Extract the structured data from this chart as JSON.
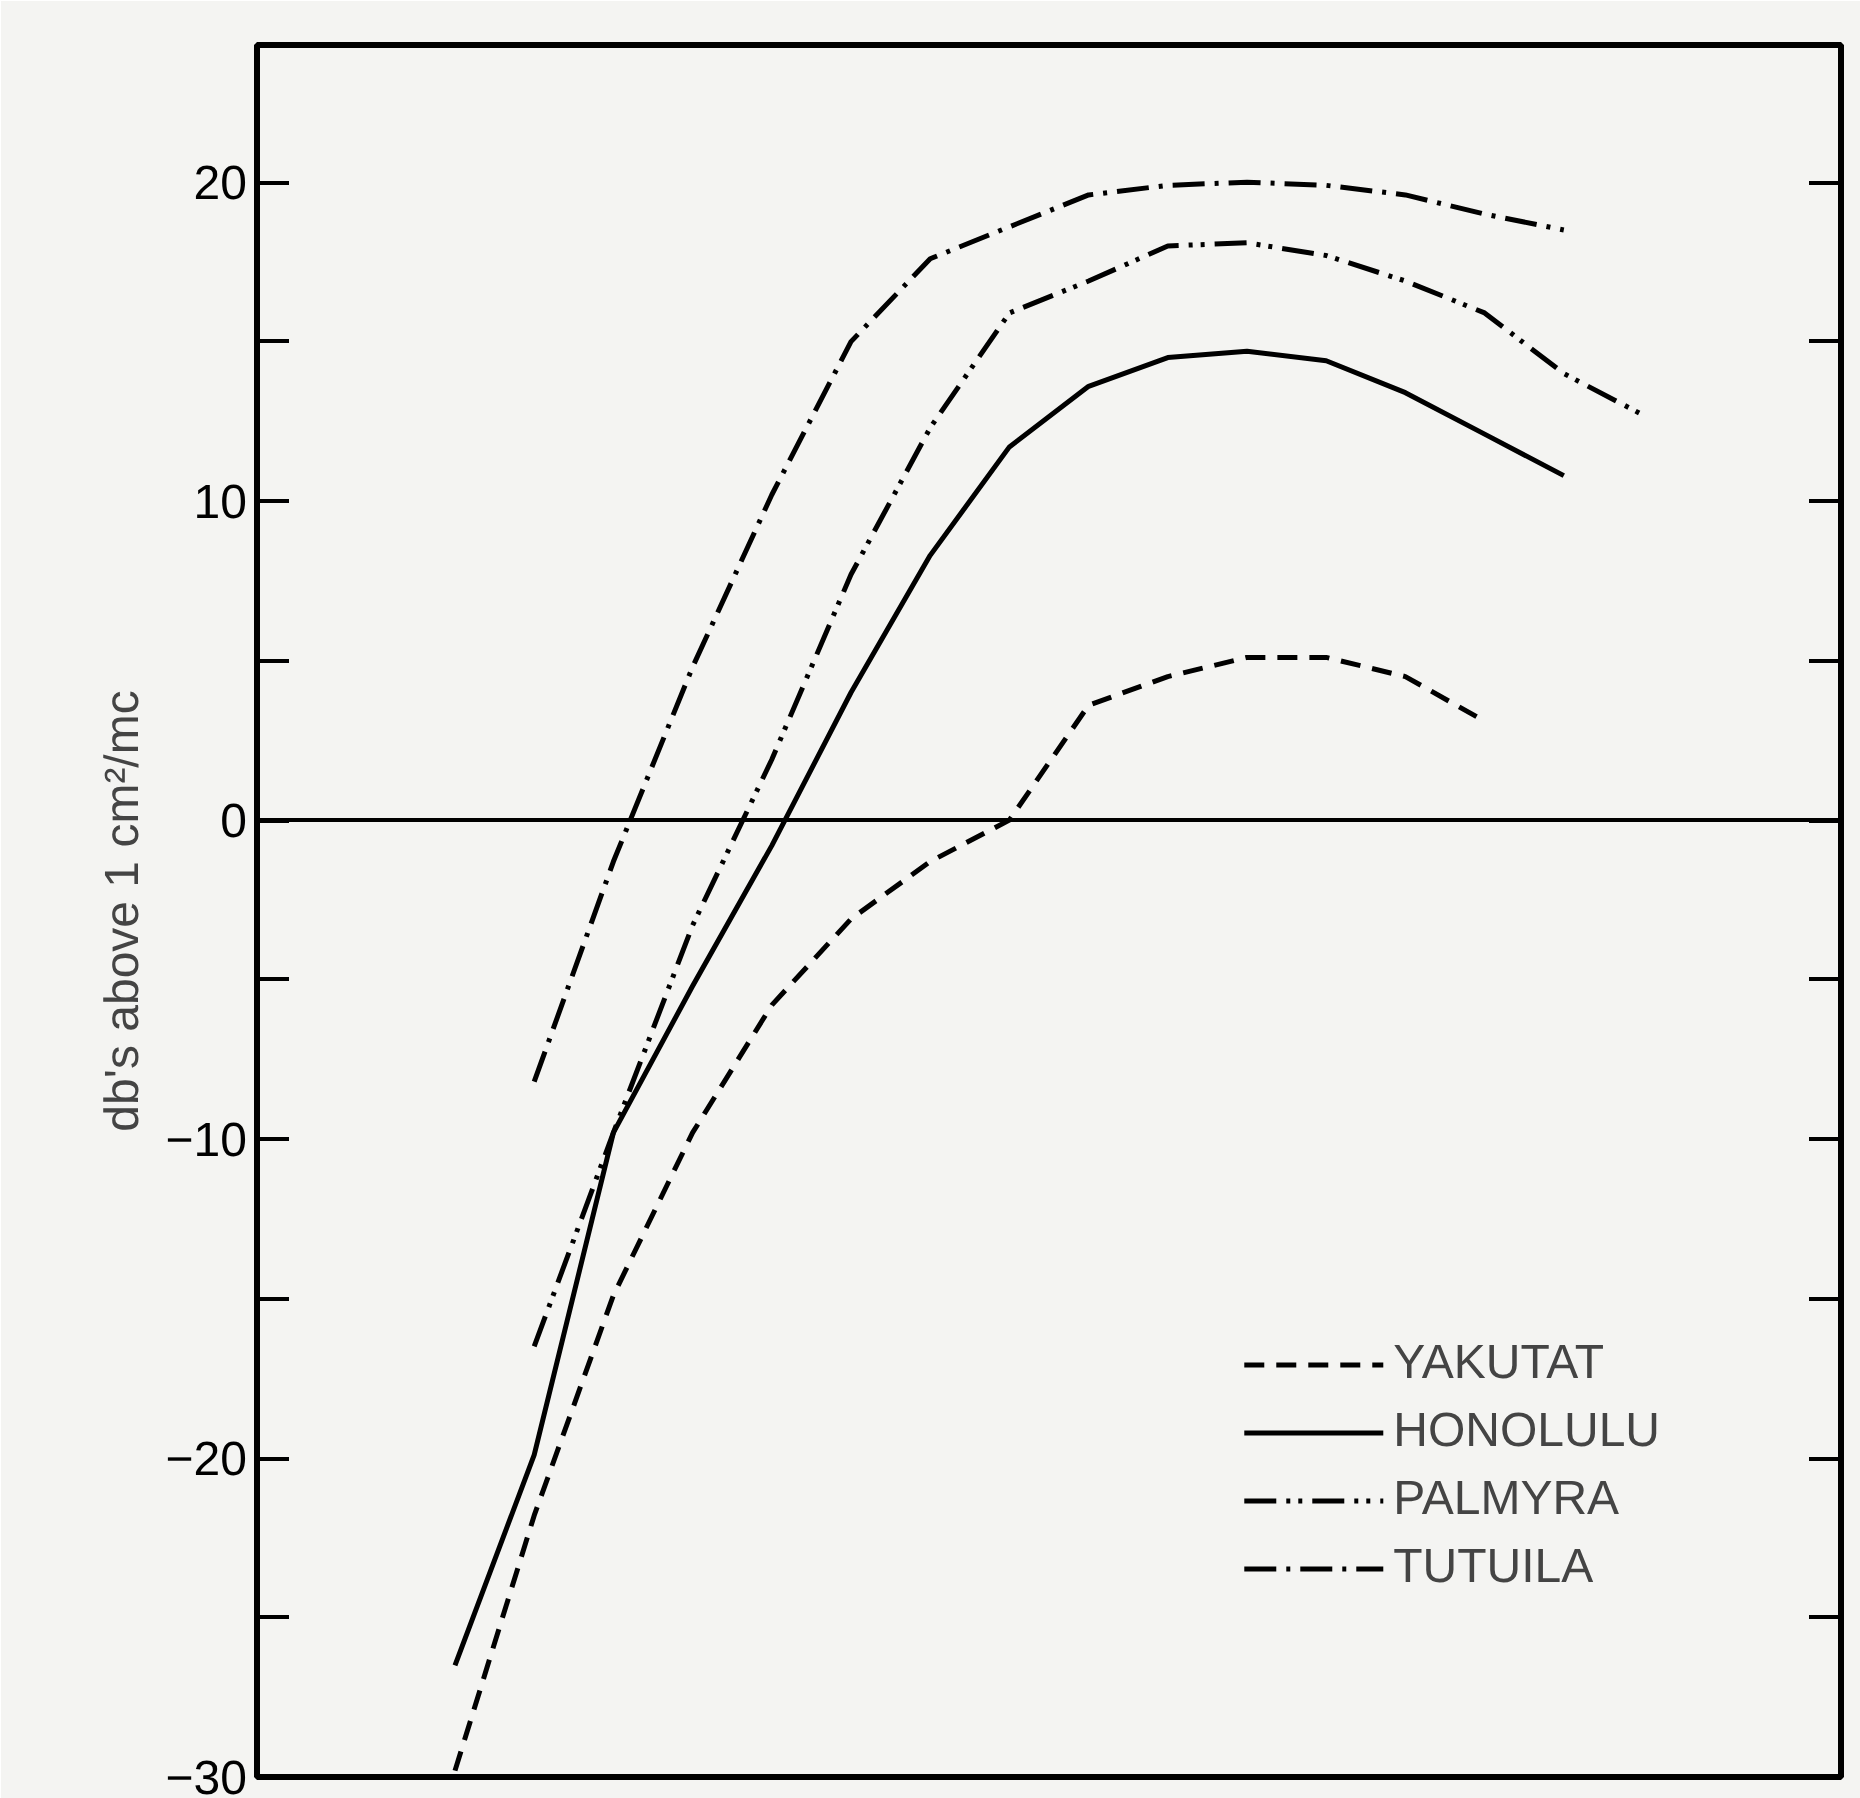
{
  "chart_data": {
    "type": "line",
    "ylabel": "db's above 1 cm²/mc",
    "categories": [
      null,
      null,
      null,
      null,
      null,
      null,
      null,
      null,
      null,
      null,
      null,
      null,
      null,
      null,
      null,
      null,
      null,
      null,
      null,
      null
    ],
    "series": [
      {
        "name": "YAKUTAT",
        "color": "#000000",
        "line_style": "dashed",
        "values": [
          null,
          null,
          -29.8,
          -21.8,
          -14.9,
          -9.8,
          -5.8,
          -3.1,
          -1.3,
          0,
          3.6,
          4.5,
          5.1,
          5.1,
          4.5,
          3.1,
          null,
          null,
          null,
          null
        ]
      },
      {
        "name": "HONOLULU",
        "color": "#000000",
        "line_style": "solid",
        "values": [
          null,
          null,
          -26.5,
          -19.9,
          -9.8,
          -5.2,
          -0.8,
          4.0,
          8.3,
          11.7,
          13.6,
          14.5,
          14.7,
          14.4,
          13.4,
          12.1,
          10.8,
          null,
          null,
          null
        ]
      },
      {
        "name": "PALMYRA",
        "color": "#000000",
        "line_style": "dashdotdot",
        "values": [
          null,
          null,
          null,
          -16.5,
          -9.8,
          -3.3,
          1.9,
          7.7,
          12.3,
          15.9,
          16.9,
          18.0,
          18.1,
          17.7,
          16.9,
          15.9,
          14.0,
          12.7,
          null,
          null
        ]
      },
      {
        "name": "TUTUILA",
        "color": "#000000",
        "line_style": "dashdot",
        "values": [
          null,
          null,
          null,
          -8.2,
          -1.3,
          4.8,
          10.2,
          15.0,
          17.6,
          18.6,
          19.6,
          19.9,
          20.0,
          19.9,
          19.6,
          19.0,
          18.5,
          null,
          null,
          null
        ]
      }
    ],
    "ylim": [
      -30,
      24.3
    ],
    "yticks": [
      -30,
      {
        "value": -25,
        "label": null
      },
      -20,
      {
        "value": -15,
        "label": null
      },
      -10,
      {
        "value": -5,
        "label": null
      },
      0,
      {
        "value": 5,
        "label": null
      },
      10,
      {
        "value": 15,
        "label": null
      },
      20
    ],
    "ref_lines": [
      {
        "axis": "y",
        "value": 0,
        "color": "#000000"
      }
    ],
    "tick_labels": "y",
    "grid": false,
    "legend": "bottom right",
    "marker": "none"
  }
}
